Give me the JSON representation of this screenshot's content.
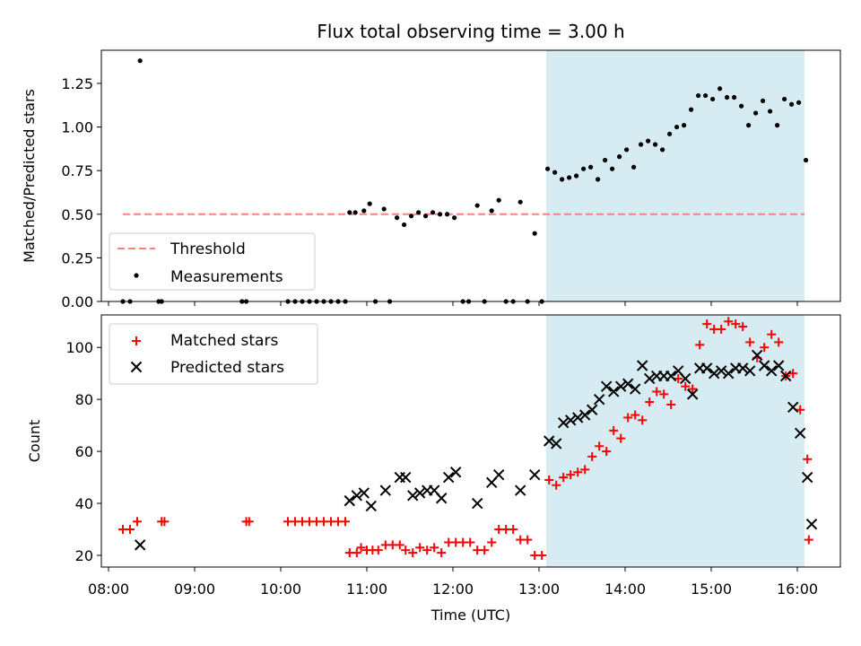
{
  "title": "Flux total observing time = 3.00 h",
  "colors": {
    "threshold": "#ff7f7f",
    "measurement": "#000000",
    "matched": "#ff0000",
    "predicted": "#000000",
    "highlight": "#add8e6"
  },
  "chart_data": [
    {
      "type": "scatter",
      "ylabel": "Matched/Predicted stars",
      "ylim": [
        0,
        1.44
      ],
      "yticks": [
        "0.00",
        "0.25",
        "0.50",
        "0.75",
        "1.00",
        "1.25"
      ],
      "highlight_span": [
        "13:05",
        "16:05"
      ],
      "legend": {
        "position": "lower-left",
        "entries": [
          "Threshold",
          "Measurements"
        ]
      },
      "threshold": {
        "name": "Threshold",
        "value": 0.5,
        "x_range": [
          "08:10",
          "16:05"
        ]
      },
      "series": [
        {
          "name": "Measurements",
          "marker": "dot",
          "points": [
            [
              "08:10",
              0.0
            ],
            [
              "08:15",
              0.0
            ],
            [
              "08:22",
              1.38
            ],
            [
              "08:35",
              0.0
            ],
            [
              "08:37",
              0.0
            ],
            [
              "09:33",
              0.0
            ],
            [
              "09:36",
              0.0
            ],
            [
              "10:05",
              0.0
            ],
            [
              "10:10",
              0.0
            ],
            [
              "10:15",
              0.0
            ],
            [
              "10:20",
              0.0
            ],
            [
              "10:25",
              0.0
            ],
            [
              "10:30",
              0.0
            ],
            [
              "10:35",
              0.0
            ],
            [
              "10:40",
              0.0
            ],
            [
              "10:45",
              0.0
            ],
            [
              "10:48",
              0.51
            ],
            [
              "10:52",
              0.51
            ],
            [
              "10:58",
              0.52
            ],
            [
              "11:02",
              0.56
            ],
            [
              "11:06",
              0.0
            ],
            [
              "11:12",
              0.53
            ],
            [
              "11:16",
              0.0
            ],
            [
              "11:21",
              0.48
            ],
            [
              "11:26",
              0.44
            ],
            [
              "11:31",
              0.49
            ],
            [
              "11:36",
              0.51
            ],
            [
              "11:41",
              0.49
            ],
            [
              "11:46",
              0.51
            ],
            [
              "11:51",
              0.5
            ],
            [
              "11:56",
              0.5
            ],
            [
              "12:01",
              0.48
            ],
            [
              "12:07",
              0.0
            ],
            [
              "12:11",
              0.0
            ],
            [
              "12:17",
              0.55
            ],
            [
              "12:22",
              0.0
            ],
            [
              "12:27",
              0.52
            ],
            [
              "12:32",
              0.58
            ],
            [
              "12:37",
              0.0
            ],
            [
              "12:42",
              0.0
            ],
            [
              "12:47",
              0.57
            ],
            [
              "12:52",
              0.0
            ],
            [
              "12:57",
              0.39
            ],
            [
              "13:02",
              0.0
            ],
            [
              "13:06",
              0.76
            ],
            [
              "13:11",
              0.74
            ],
            [
              "13:16",
              0.7
            ],
            [
              "13:21",
              0.71
            ],
            [
              "13:26",
              0.72
            ],
            [
              "13:31",
              0.76
            ],
            [
              "13:36",
              0.77
            ],
            [
              "13:41",
              0.7
            ],
            [
              "13:46",
              0.81
            ],
            [
              "13:51",
              0.76
            ],
            [
              "13:56",
              0.83
            ],
            [
              "14:01",
              0.87
            ],
            [
              "14:06",
              0.77
            ],
            [
              "14:11",
              0.9
            ],
            [
              "14:16",
              0.92
            ],
            [
              "14:21",
              0.9
            ],
            [
              "14:26",
              0.87
            ],
            [
              "14:31",
              0.96
            ],
            [
              "14:36",
              1.0
            ],
            [
              "14:41",
              1.01
            ],
            [
              "14:46",
              1.1
            ],
            [
              "14:51",
              1.18
            ],
            [
              "14:56",
              1.18
            ],
            [
              "15:01",
              1.16
            ],
            [
              "15:06",
              1.22
            ],
            [
              "15:11",
              1.17
            ],
            [
              "15:16",
              1.17
            ],
            [
              "15:21",
              1.12
            ],
            [
              "15:26",
              1.01
            ],
            [
              "15:31",
              1.08
            ],
            [
              "15:36",
              1.15
            ],
            [
              "15:41",
              1.09
            ],
            [
              "15:46",
              1.01
            ],
            [
              "15:51",
              1.16
            ],
            [
              "15:56",
              1.13
            ],
            [
              "16:01",
              1.14
            ],
            [
              "16:06",
              0.81
            ]
          ]
        }
      ]
    },
    {
      "type": "scatter",
      "xlabel": "Time (UTC)",
      "ylabel": "Count",
      "ylim": [
        15.5,
        112.5
      ],
      "yticks": [
        "20",
        "40",
        "60",
        "80",
        "100"
      ],
      "xlim": [
        "07:55",
        "16:30"
      ],
      "xticks": [
        "08:00",
        "09:00",
        "10:00",
        "11:00",
        "12:00",
        "13:00",
        "14:00",
        "15:00",
        "16:00"
      ],
      "highlight_span": [
        "13:05",
        "16:05"
      ],
      "legend": {
        "position": "top-left",
        "entries": [
          "Matched stars",
          "Predicted stars"
        ]
      },
      "series": [
        {
          "name": "Matched stars",
          "marker": "plus",
          "points": [
            [
              "08:10",
              30
            ],
            [
              "08:15",
              30
            ],
            [
              "08:20",
              33
            ],
            [
              "08:37",
              33
            ],
            [
              "08:39",
              33
            ],
            [
              "09:36",
              33
            ],
            [
              "09:38",
              33
            ],
            [
              "10:05",
              33
            ],
            [
              "10:10",
              33
            ],
            [
              "10:15",
              33
            ],
            [
              "10:20",
              33
            ],
            [
              "10:25",
              33
            ],
            [
              "10:30",
              33
            ],
            [
              "10:35",
              33
            ],
            [
              "10:40",
              33
            ],
            [
              "10:45",
              33
            ],
            [
              "10:48",
              21
            ],
            [
              "10:53",
              21
            ],
            [
              "10:56",
              23
            ],
            [
              "11:00",
              22
            ],
            [
              "11:04",
              22
            ],
            [
              "11:08",
              22
            ],
            [
              "11:13",
              24
            ],
            [
              "11:18",
              24
            ],
            [
              "11:23",
              24
            ],
            [
              "11:27",
              22
            ],
            [
              "11:32",
              21
            ],
            [
              "11:37",
              23
            ],
            [
              "11:42",
              22
            ],
            [
              "11:47",
              23
            ],
            [
              "11:52",
              21
            ],
            [
              "11:57",
              25
            ],
            [
              "12:02",
              25
            ],
            [
              "12:07",
              25
            ],
            [
              "12:12",
              25
            ],
            [
              "12:17",
              22
            ],
            [
              "12:22",
              22
            ],
            [
              "12:27",
              25
            ],
            [
              "12:32",
              30
            ],
            [
              "12:37",
              30
            ],
            [
              "12:42",
              30
            ],
            [
              "12:47",
              26
            ],
            [
              "12:52",
              26
            ],
            [
              "12:57",
              20
            ],
            [
              "13:02",
              20
            ],
            [
              "13:07",
              49
            ],
            [
              "13:12",
              47
            ],
            [
              "13:17",
              50
            ],
            [
              "13:22",
              51
            ],
            [
              "13:27",
              52
            ],
            [
              "13:32",
              53
            ],
            [
              "13:37",
              58
            ],
            [
              "13:42",
              62
            ],
            [
              "13:47",
              60
            ],
            [
              "13:52",
              68
            ],
            [
              "13:57",
              65
            ],
            [
              "14:02",
              73
            ],
            [
              "14:07",
              74
            ],
            [
              "14:12",
              72
            ],
            [
              "14:17",
              79
            ],
            [
              "14:22",
              83
            ],
            [
              "14:27",
              82
            ],
            [
              "14:32",
              78
            ],
            [
              "14:37",
              88
            ],
            [
              "14:42",
              85
            ],
            [
              "14:47",
              84
            ],
            [
              "14:52",
              101
            ],
            [
              "14:57",
              109
            ],
            [
              "15:02",
              107
            ],
            [
              "15:07",
              107
            ],
            [
              "15:12",
              110
            ],
            [
              "15:17",
              109
            ],
            [
              "15:22",
              108
            ],
            [
              "15:27",
              102
            ],
            [
              "15:32",
              96
            ],
            [
              "15:37",
              100
            ],
            [
              "15:42",
              105
            ],
            [
              "15:47",
              102
            ],
            [
              "15:52",
              89
            ],
            [
              "15:57",
              90
            ],
            [
              "16:02",
              76
            ],
            [
              "16:07",
              57
            ],
            [
              "16:08",
              26
            ]
          ]
        },
        {
          "name": "Predicted stars",
          "marker": "x",
          "points": [
            [
              "08:22",
              24
            ],
            [
              "10:48",
              41
            ],
            [
              "10:53",
              43
            ],
            [
              "10:58",
              44
            ],
            [
              "11:03",
              39
            ],
            [
              "11:13",
              45
            ],
            [
              "11:23",
              50
            ],
            [
              "11:27",
              50
            ],
            [
              "11:32",
              43
            ],
            [
              "11:37",
              44
            ],
            [
              "11:42",
              45
            ],
            [
              "11:47",
              45
            ],
            [
              "11:52",
              42
            ],
            [
              "11:57",
              50
            ],
            [
              "12:02",
              52
            ],
            [
              "12:17",
              40
            ],
            [
              "12:27",
              48
            ],
            [
              "12:32",
              51
            ],
            [
              "12:47",
              45
            ],
            [
              "12:57",
              51
            ],
            [
              "13:07",
              64
            ],
            [
              "13:12",
              63
            ],
            [
              "13:17",
              71
            ],
            [
              "13:22",
              72
            ],
            [
              "13:27",
              73
            ],
            [
              "13:32",
              74
            ],
            [
              "13:37",
              76
            ],
            [
              "13:42",
              80
            ],
            [
              "13:47",
              85
            ],
            [
              "13:52",
              83
            ],
            [
              "13:57",
              85
            ],
            [
              "14:02",
              86
            ],
            [
              "14:07",
              84
            ],
            [
              "14:12",
              93
            ],
            [
              "14:17",
              88
            ],
            [
              "14:22",
              89
            ],
            [
              "14:27",
              89
            ],
            [
              "14:32",
              89
            ],
            [
              "14:37",
              91
            ],
            [
              "14:42",
              88
            ],
            [
              "14:47",
              82
            ],
            [
              "14:52",
              92
            ],
            [
              "14:57",
              92
            ],
            [
              "15:02",
              90
            ],
            [
              "15:07",
              91
            ],
            [
              "15:12",
              90
            ],
            [
              "15:17",
              92
            ],
            [
              "15:22",
              92
            ],
            [
              "15:27",
              91
            ],
            [
              "15:32",
              97
            ],
            [
              "15:37",
              93
            ],
            [
              "15:42",
              91
            ],
            [
              "15:47",
              93
            ],
            [
              "15:52",
              89
            ],
            [
              "15:57",
              77
            ],
            [
              "16:02",
              67
            ],
            [
              "16:07",
              50
            ],
            [
              "16:10",
              32
            ]
          ]
        }
      ]
    }
  ]
}
